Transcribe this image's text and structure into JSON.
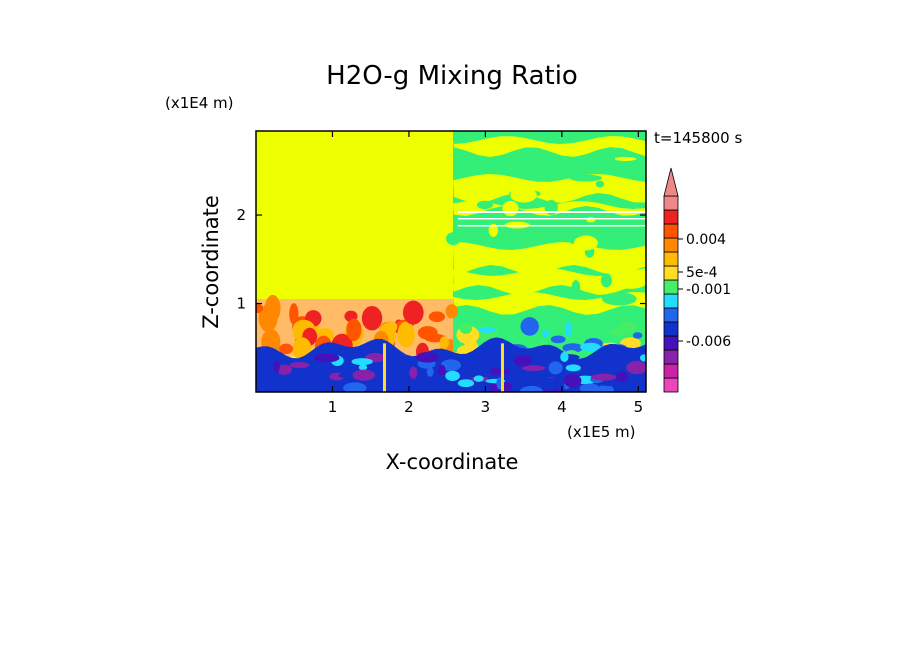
{
  "chart_data": {
    "type": "heatmap",
    "title": "H2O-g Mixing Ratio",
    "xlabel": "X-coordinate",
    "ylabel": "Z-coordinate",
    "x_unit": "(x1E5 m)",
    "y_unit": "(x1E4 m)",
    "time_label": "t=145800 s",
    "x_ticks": [
      "1",
      "2",
      "3",
      "4",
      "5"
    ],
    "x_tick_values": [
      1,
      2,
      3,
      4,
      5
    ],
    "y_ticks": [
      "1",
      "2"
    ],
    "y_tick_values": [
      1,
      2
    ],
    "xlim": [
      0,
      5.1
    ],
    "ylim": [
      0,
      2.95
    ],
    "colorbar": {
      "colors": [
        "#ee44bb",
        "#cc22aa",
        "#8822aa",
        "#4411bb",
        "#1133cc",
        "#2266ee",
        "#22ddff",
        "#44ee66",
        "#ffdd22",
        "#ffbb00",
        "#ff8800",
        "#ff5500",
        "#ee2222",
        "#ee8888"
      ],
      "labels": [
        "0.004",
        "5e-4",
        "-0.001",
        "-0.006"
      ],
      "label_values": [
        0.004,
        0.0005,
        -0.001,
        -0.006
      ],
      "extend": "max"
    },
    "fields": {
      "background_color": "#eeff00",
      "left_layer_color": "#ffbb66",
      "right_upper_color": "#33ee77",
      "boundary_color": "#1133cc"
    }
  }
}
